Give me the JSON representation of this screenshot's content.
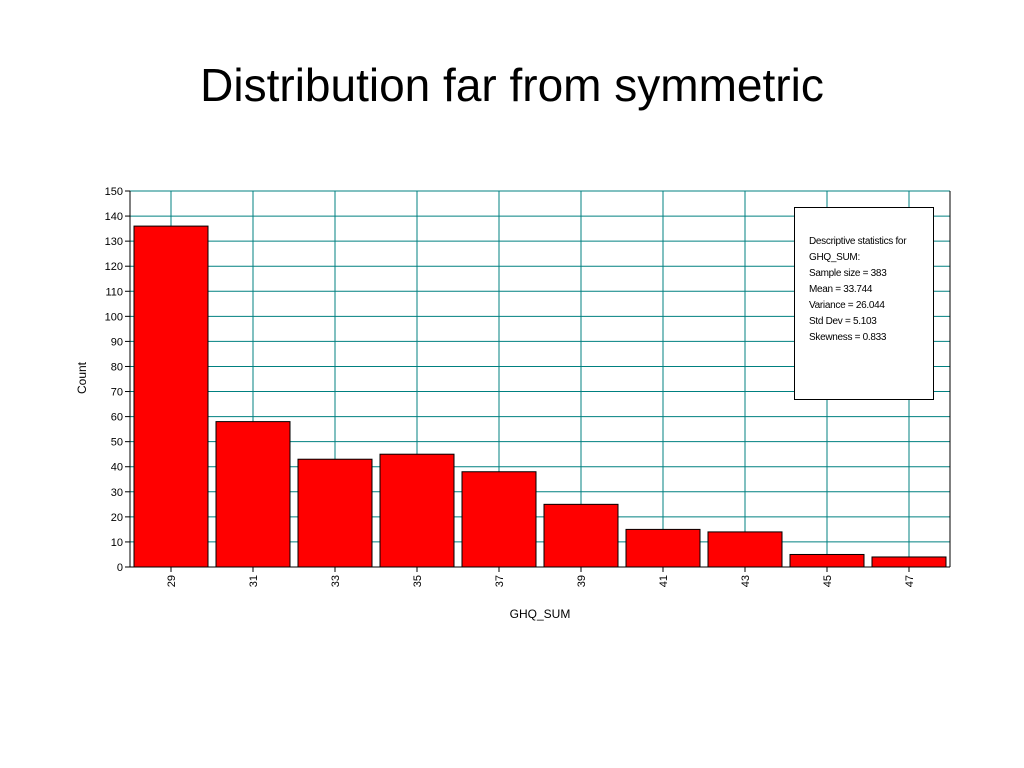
{
  "slide": {
    "title": "Distribution far from symmetric"
  },
  "chart_data": {
    "type": "bar",
    "categories": [
      "29",
      "31",
      "33",
      "35",
      "37",
      "39",
      "41",
      "43",
      "45",
      "47"
    ],
    "values": [
      136,
      58,
      43,
      45,
      38,
      25,
      15,
      14,
      5,
      4
    ],
    "xlabel": "GHQ_SUM",
    "ylabel": "Count",
    "ylim": [
      0,
      150
    ],
    "yticks": [
      0,
      10,
      20,
      30,
      40,
      50,
      60,
      70,
      80,
      90,
      100,
      110,
      120,
      130,
      140,
      150
    ],
    "grid": true,
    "colors": {
      "bar": "#ff0000",
      "bar_outline": "#000000",
      "grid": "#008080"
    }
  },
  "stats": {
    "heading_line1": "Descriptive statistics for",
    "heading_line2": "GHQ_SUM:",
    "sample_size": "Sample size = 383",
    "mean": "Mean = 33.744",
    "variance": "Variance = 26.044",
    "std_dev": "Std Dev = 5.103",
    "skewness": "Skewness = 0.833"
  }
}
